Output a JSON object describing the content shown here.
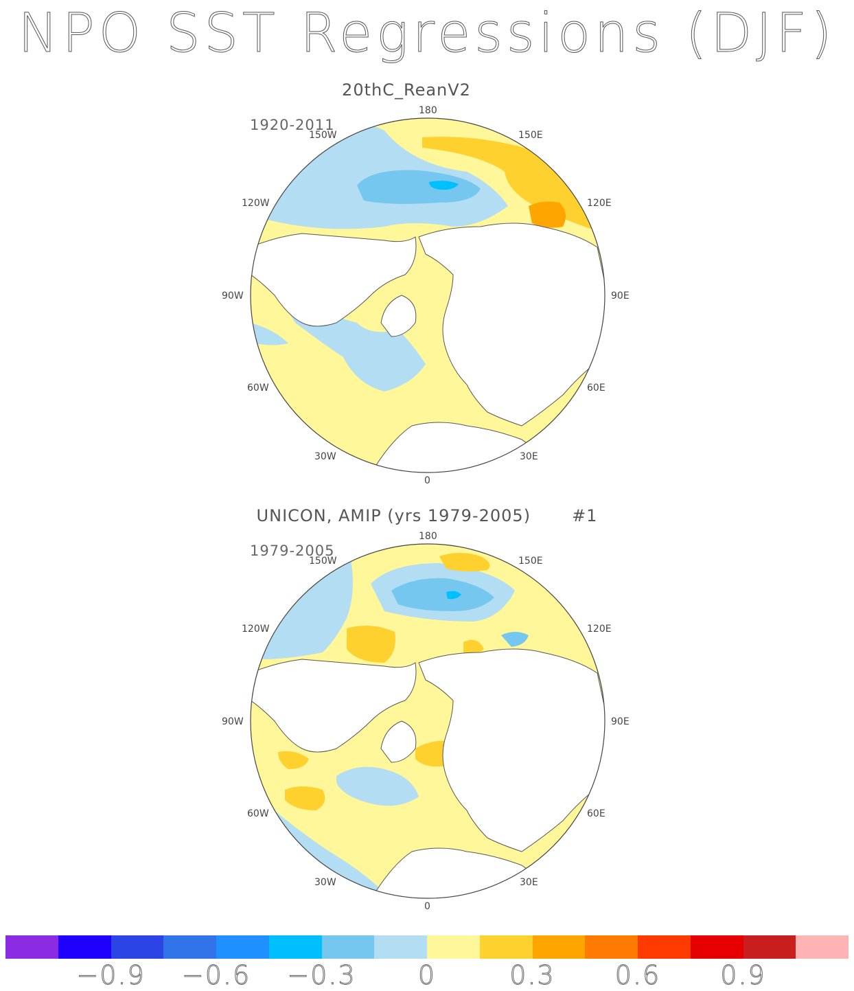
{
  "title": "NPO SST Regressions (DJF)",
  "panels": [
    {
      "title": "20thC_ReanV2",
      "mark": "",
      "period": "1920-2011",
      "lon_labels": {
        "top": "180",
        "bottom": "0",
        "l150": "150W",
        "r150": "150E",
        "l120": "120W",
        "r120": "120E",
        "l90": "90W",
        "r90": "90E",
        "l60": "60W",
        "r60": "60E",
        "l30": "30W",
        "r30": "30E"
      }
    },
    {
      "title": "UNICON, AMIP (yrs 1979-2005)",
      "mark": "#1",
      "period": "1979-2005",
      "lon_labels": {
        "top": "180",
        "bottom": "0",
        "l150": "150W",
        "r150": "150E",
        "l120": "120W",
        "r120": "120E",
        "l90": "90W",
        "r90": "90E",
        "l60": "60W",
        "r60": "60E",
        "l30": "30W",
        "r30": "30E"
      }
    }
  ],
  "colorbar": {
    "colors": [
      "#8b2be2",
      "#1e00ff",
      "#2b44e6",
      "#3173e8",
      "#1e90ff",
      "#00bfff",
      "#76c7f0",
      "#b2ddf2",
      "#fff799",
      "#ffd12e",
      "#ffa500",
      "#ff7a00",
      "#ff3a00",
      "#e60000",
      "#c81e1e",
      "#ffb3b3"
    ],
    "labels": [
      "−0.9",
      "−0.6",
      "−0.3",
      "0",
      "0.3",
      "0.6",
      "0.9"
    ]
  },
  "legend_colors": {
    "land": "#ffffff",
    "coast": "#555555"
  }
}
